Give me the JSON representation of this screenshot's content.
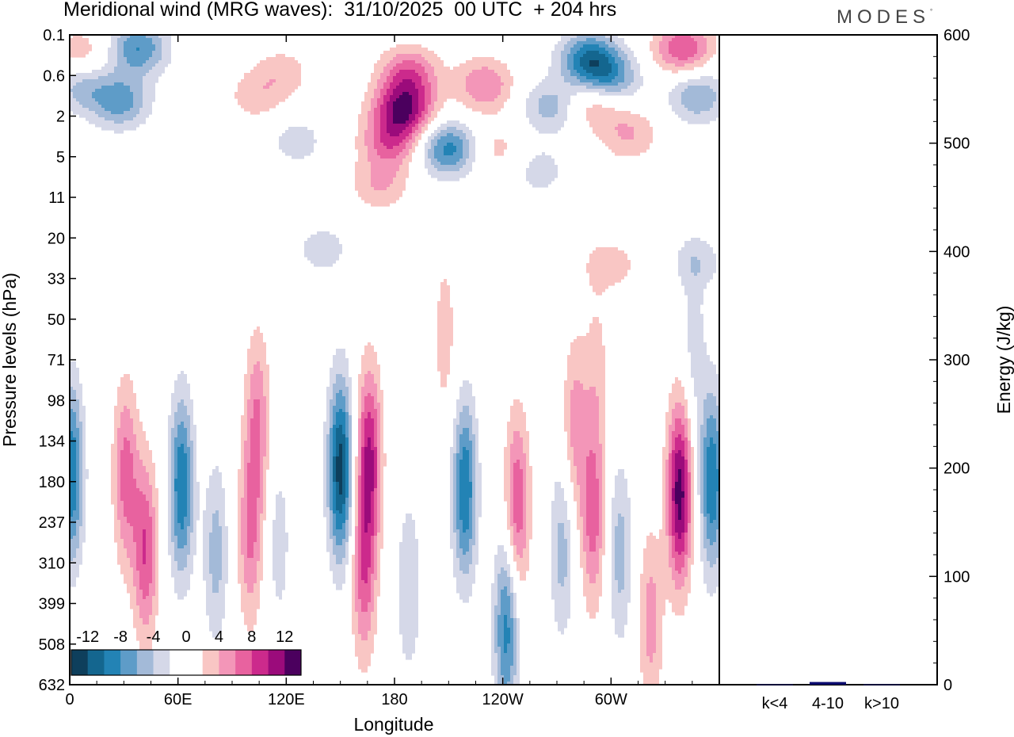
{
  "header": {
    "title": "Meridional wind (MRG waves):  31/10/2025  00 UTC  + 204 hrs",
    "brand": "MODES",
    "brand_mark": "°"
  },
  "chart_data": [
    {
      "type": "heatmap",
      "title": "Meridional wind (MRG waves)",
      "xlabel": "Longitude",
      "ylabel": "Pressure levels (hPa)",
      "x_ticks": [
        "0",
        "60E",
        "120E",
        "180",
        "120W",
        "60W"
      ],
      "x_tick_values": [
        0,
        60,
        120,
        180,
        240,
        300
      ],
      "xlim": [
        0,
        360
      ],
      "y_ticks": [
        "0.1",
        "0.6",
        "2",
        "5",
        "11",
        "20",
        "33",
        "50",
        "71",
        "98",
        "134",
        "180",
        "237",
        "310",
        "399",
        "508",
        "632"
      ],
      "colorbar": {
        "labels": [
          "-12",
          "-8",
          "-4",
          "0",
          "4",
          "8",
          "12"
        ],
        "colors": [
          "#0e3f5c",
          "#14668f",
          "#2383b5",
          "#5e9cc8",
          "#a3bad8",
          "#d5d8e8",
          "#ffffff",
          "#ffffff",
          "#f9c6c4",
          "#f396b8",
          "#e8629f",
          "#cc2a8c",
          "#9b0b7b",
          "#4b005e"
        ],
        "range": [
          -14,
          14
        ]
      },
      "features": [
        {
          "lon": 1,
          "p": 170,
          "v": -10
        },
        {
          "lon": 31,
          "p": 170,
          "v": 7
        },
        {
          "lon": 42,
          "p": 285,
          "v": 8
        },
        {
          "lon": 62,
          "p": 185,
          "v": -10
        },
        {
          "lon": 81,
          "p": 290,
          "v": -5
        },
        {
          "lon": 100,
          "p": 260,
          "v": 6
        },
        {
          "lon": 104,
          "p": 115,
          "v": 6
        },
        {
          "lon": 116,
          "p": 270,
          "v": -3
        },
        {
          "lon": 150,
          "p": 165,
          "v": -13
        },
        {
          "lon": 166,
          "p": 150,
          "v": 10
        },
        {
          "lon": 163,
          "p": 330,
          "v": 7
        },
        {
          "lon": 188,
          "p": 360,
          "v": -4
        },
        {
          "lon": 219,
          "p": 190,
          "v": -10
        },
        {
          "lon": 248,
          "p": 210,
          "v": 8
        },
        {
          "lon": 242,
          "p": 460,
          "v": -9
        },
        {
          "lon": 273,
          "p": 280,
          "v": -5
        },
        {
          "lon": 280,
          "p": 120,
          "v": 5
        },
        {
          "lon": 290,
          "p": 230,
          "v": 7
        },
        {
          "lon": 305,
          "p": 290,
          "v": -5
        },
        {
          "lon": 322,
          "p": 440,
          "v": 5
        },
        {
          "lon": 338,
          "p": 195,
          "v": 13
        },
        {
          "lon": 356,
          "p": 180,
          "v": -10
        },
        {
          "lon": 185,
          "p": 1.6,
          "v": 11
        },
        {
          "lon": 178,
          "p": 3.5,
          "v": 7
        },
        {
          "lon": 172,
          "p": 8.5,
          "v": 4
        },
        {
          "lon": 188,
          "p": 0.55,
          "v": 7
        },
        {
          "lon": 210,
          "p": 4.2,
          "v": -9
        },
        {
          "lon": 38,
          "p": 0.18,
          "v": -8
        },
        {
          "lon": 28,
          "p": 1.3,
          "v": -7
        },
        {
          "lon": 6,
          "p": 0.8,
          "v": -5
        },
        {
          "lon": 6,
          "p": 0.25,
          "v": 4
        },
        {
          "lon": 118,
          "p": 0.55,
          "v": 3
        },
        {
          "lon": 103,
          "p": 1.1,
          "v": 3
        },
        {
          "lon": 230,
          "p": 0.8,
          "v": 6
        },
        {
          "lon": 236,
          "p": 4.3,
          "v": 3
        },
        {
          "lon": 266,
          "p": 1.5,
          "v": -5
        },
        {
          "lon": 288,
          "p": 0.3,
          "v": -10
        },
        {
          "lon": 300,
          "p": 0.7,
          "v": -7
        },
        {
          "lon": 292,
          "p": 1.3,
          "v": 5
        },
        {
          "lon": 310,
          "p": 3.0,
          "v": 4
        },
        {
          "lon": 340,
          "p": 0.18,
          "v": 8
        },
        {
          "lon": 348,
          "p": 1.1,
          "v": -6
        },
        {
          "lon": 260,
          "p": 6.5,
          "v": -3
        },
        {
          "lon": 126,
          "p": 3.5,
          "v": -3
        },
        {
          "lon": 208,
          "p": 58,
          "v": 3
        },
        {
          "lon": 292,
          "p": 82,
          "v": 3
        },
        {
          "lon": 348,
          "p": 27,
          "v": -3
        },
        {
          "lon": 300,
          "p": 28,
          "v": 3
        },
        {
          "lon": 140,
          "p": 23,
          "v": -3
        },
        {
          "lon": 346,
          "p": 62,
          "v": -3
        }
      ]
    },
    {
      "type": "bar",
      "ylabel": "Energy (J/kg)",
      "ylim": [
        0,
        600
      ],
      "y_ticks": [
        "0",
        "100",
        "200",
        "300",
        "400",
        "500",
        "600"
      ],
      "y_tick_values": [
        0,
        100,
        200,
        300,
        400,
        500,
        600
      ],
      "categories": [
        "k<4",
        "4-10",
        "k>10"
      ],
      "values": [
        0.4,
        2.5,
        0.4
      ],
      "bar_color": "#0a0a6e"
    }
  ]
}
